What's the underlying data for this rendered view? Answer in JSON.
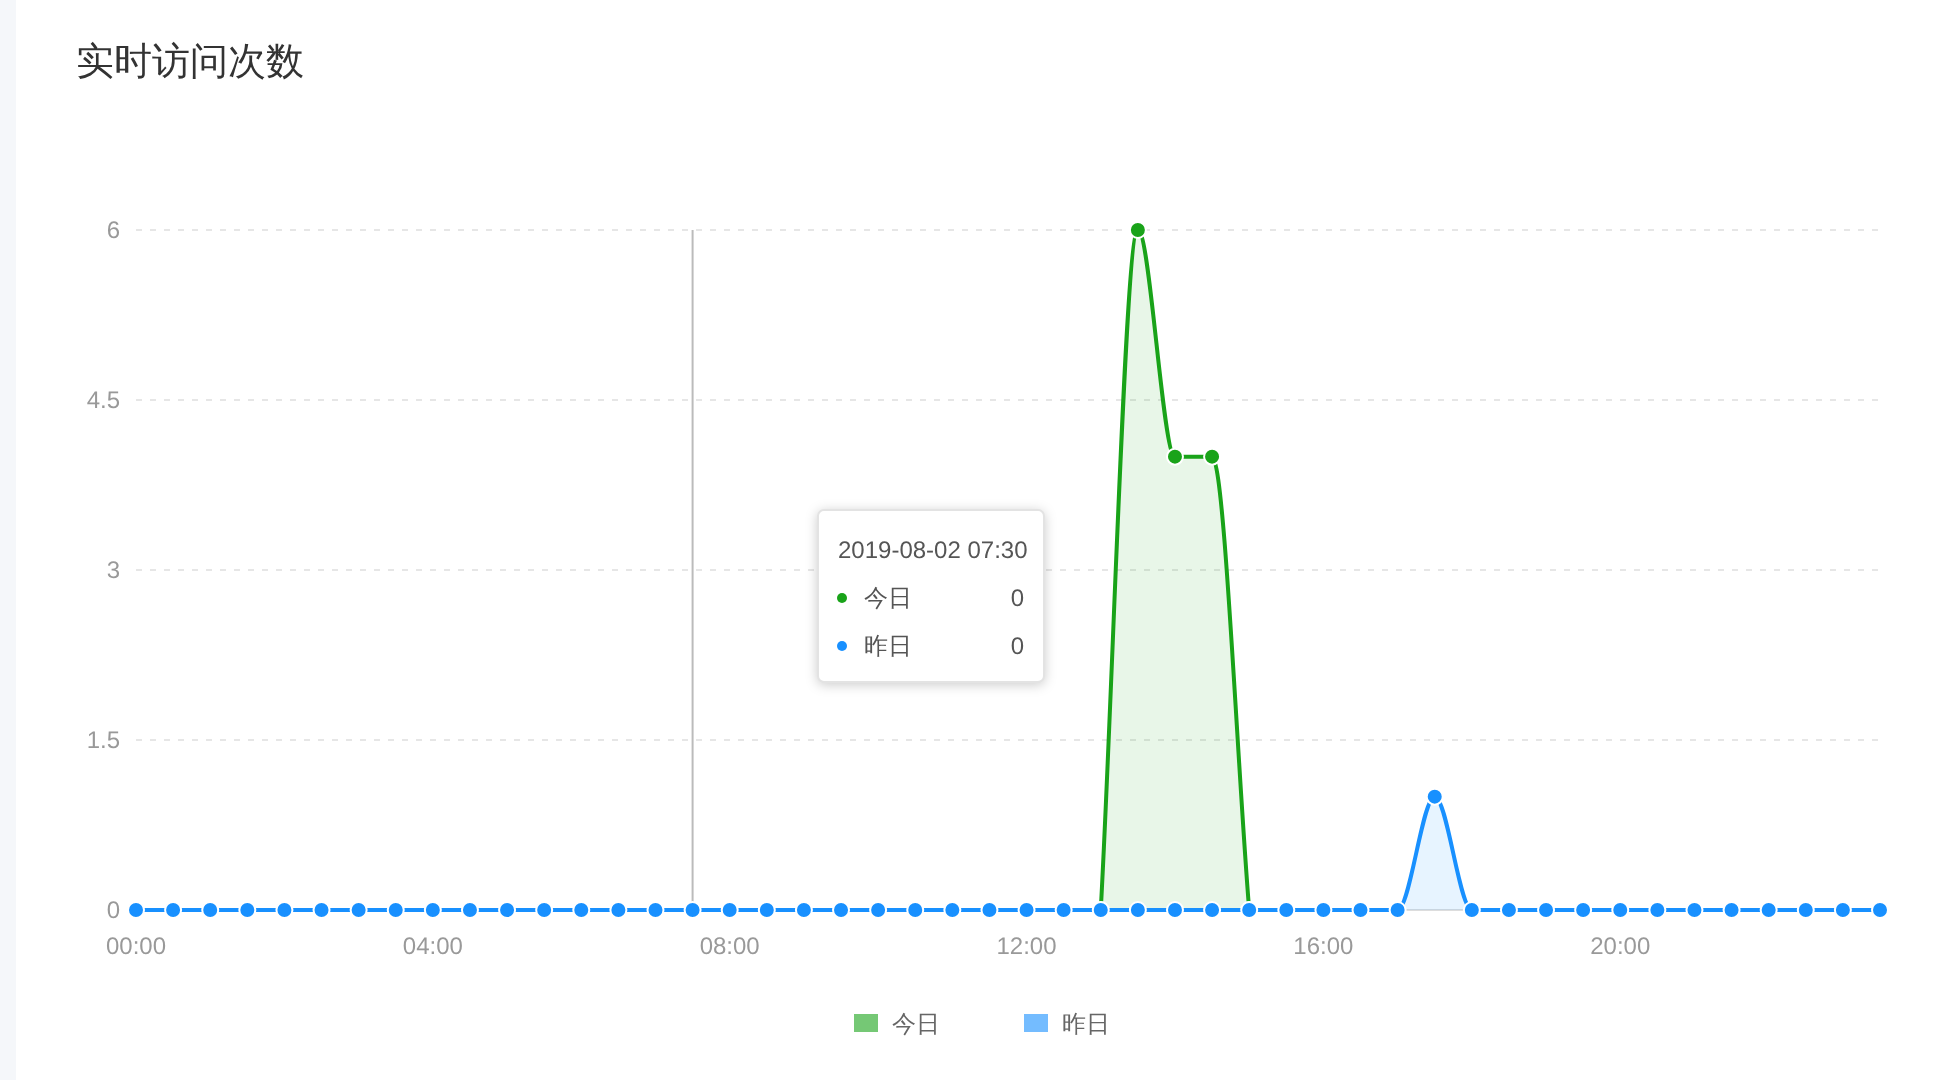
{
  "chart_data": {
    "type": "area",
    "title": "实时访问次数",
    "x": [
      0,
      0.5,
      1,
      1.5,
      2,
      2.5,
      3,
      3.5,
      4,
      4.5,
      5,
      5.5,
      6,
      6.5,
      7,
      7.5,
      8,
      8.5,
      9,
      9.5,
      10,
      10.5,
      11,
      11.5,
      12,
      12.5,
      13,
      13.5,
      14,
      14.5,
      15,
      15.5,
      16,
      16.5,
      17,
      17.5,
      18,
      18.5,
      19,
      19.5,
      20,
      20.5,
      21,
      21.5,
      22,
      22.5,
      23,
      23.5
    ],
    "series": [
      {
        "name": "今日",
        "color": "#19a319",
        "values": [
          null,
          null,
          null,
          null,
          null,
          null,
          null,
          null,
          null,
          null,
          null,
          null,
          null,
          null,
          null,
          null,
          null,
          null,
          null,
          null,
          null,
          null,
          null,
          null,
          null,
          null,
          0,
          6,
          4,
          4,
          0,
          null,
          null,
          null,
          null,
          null,
          null,
          null,
          null,
          null,
          null,
          null,
          null,
          null,
          null,
          null,
          null,
          null
        ]
      },
      {
        "name": "昨日",
        "color": "#1890ff",
        "values": [
          0,
          0,
          0,
          0,
          0,
          0,
          0,
          0,
          0,
          0,
          0,
          0,
          0,
          0,
          0,
          0,
          0,
          0,
          0,
          0,
          0,
          0,
          0,
          0,
          0,
          0,
          0,
          0,
          0,
          0,
          0,
          0,
          0,
          0,
          0,
          1,
          0,
          0,
          0,
          0,
          0,
          0,
          0,
          0,
          0,
          0,
          0,
          0
        ]
      }
    ],
    "xlim": [
      0,
      23.5
    ],
    "xticks": [
      {
        "value": 0,
        "label": "00:00"
      },
      {
        "value": 4,
        "label": "04:00"
      },
      {
        "value": 8,
        "label": "08:00"
      },
      {
        "value": 12,
        "label": "12:00"
      },
      {
        "value": 16,
        "label": "16:00"
      },
      {
        "value": 20,
        "label": "20:00"
      }
    ],
    "ylim": [
      0,
      6
    ],
    "yticks": [
      0,
      1.5,
      3,
      4.5,
      6
    ],
    "grid": "y",
    "legend": "bottom",
    "marker": "circle",
    "ref_lines": [
      {
        "axis": "x",
        "value": 7.5,
        "color": "#bbbbbb"
      }
    ],
    "annotations": [
      "2019-08-02 07:30",
      "今日",
      "0",
      "昨日",
      "0"
    ]
  }
}
